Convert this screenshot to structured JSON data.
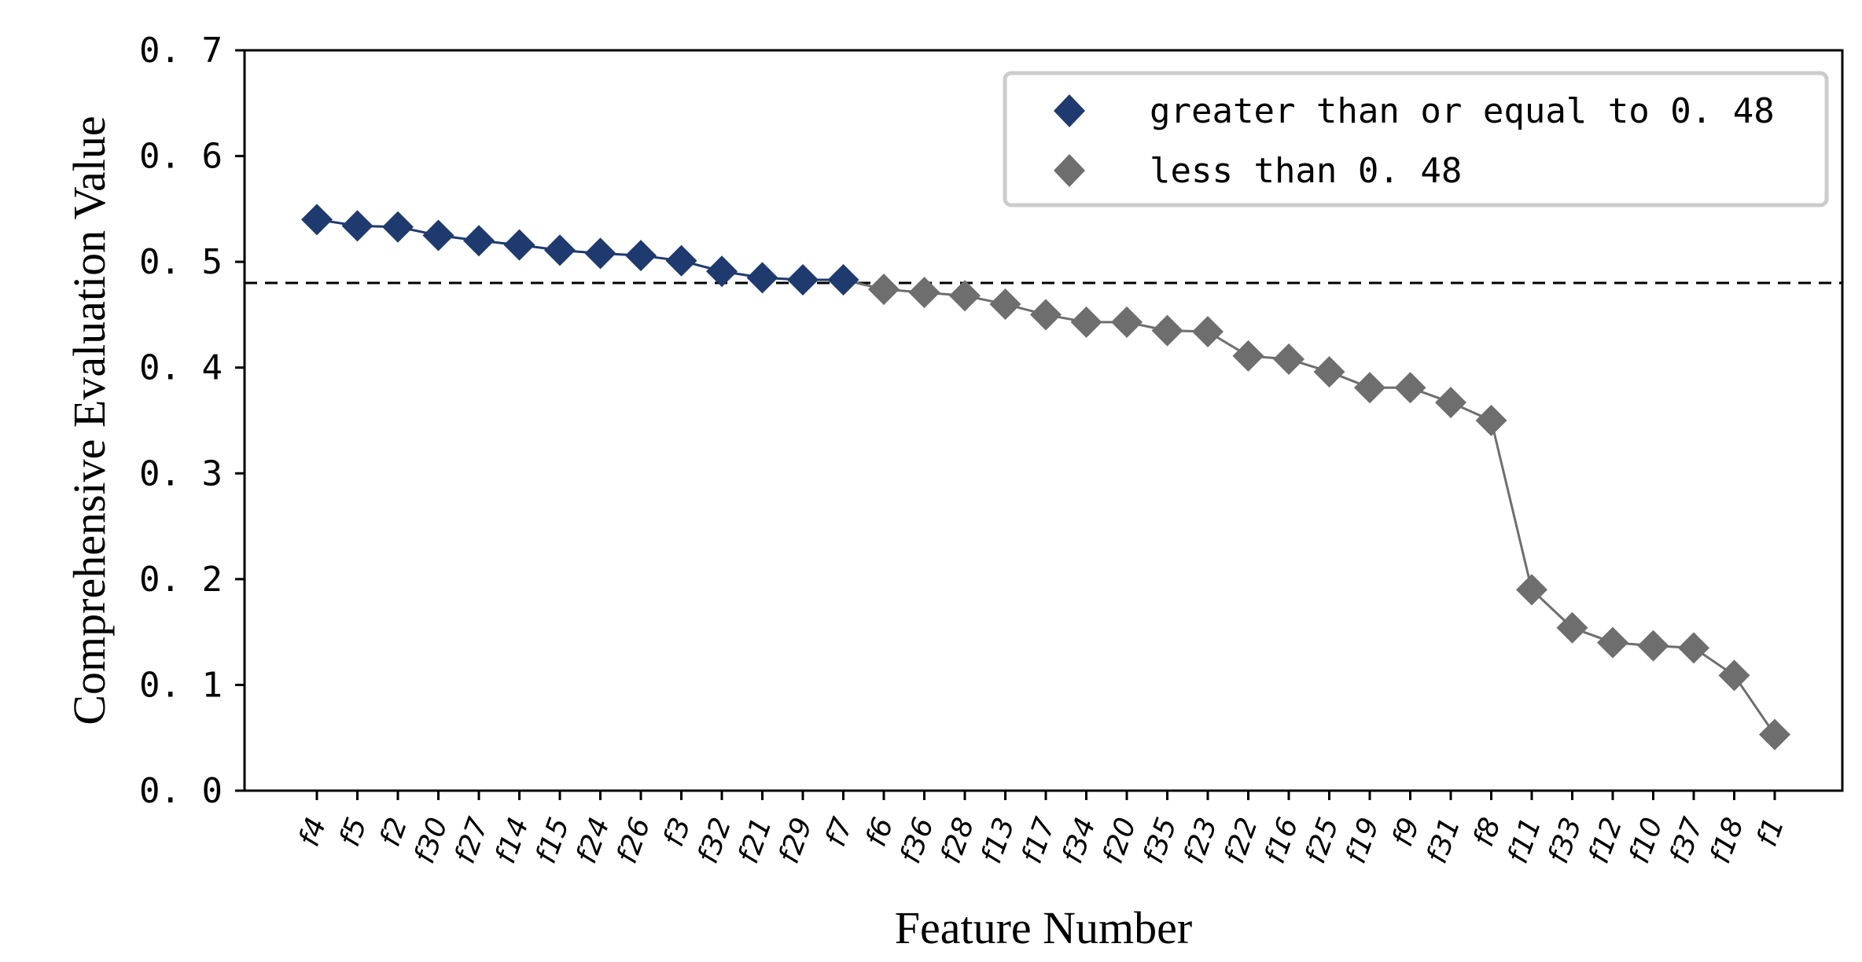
{
  "chart_data": {
    "type": "line",
    "xlabel": "Feature Number",
    "ylabel": "Comprehensive Evaluation Value",
    "ylim": [
      0,
      0.7
    ],
    "yticks": [
      "0. 0",
      "0. 1",
      "0. 2",
      "0. 3",
      "0. 4",
      "0. 5",
      "0. 6",
      "0. 7"
    ],
    "threshold": 0.48,
    "grid": false,
    "legend_position": "top-right",
    "categories": [
      "f4",
      "f5",
      "f2",
      "f30",
      "f27",
      "f14",
      "f15",
      "f24",
      "f26",
      "f3",
      "f32",
      "f21",
      "f29",
      "f7",
      "f6",
      "f36",
      "f28",
      "f13",
      "f17",
      "f34",
      "f20",
      "f35",
      "f23",
      "f22",
      "f16",
      "f25",
      "f19",
      "f9",
      "f31",
      "f8",
      "f11",
      "f33",
      "f12",
      "f10",
      "f37",
      "f18",
      "f1"
    ],
    "values": [
      0.54,
      0.534,
      0.533,
      0.525,
      0.52,
      0.516,
      0.511,
      0.508,
      0.506,
      0.501,
      0.491,
      0.485,
      0.483,
      0.483,
      0.474,
      0.471,
      0.468,
      0.46,
      0.45,
      0.443,
      0.443,
      0.435,
      0.434,
      0.411,
      0.408,
      0.396,
      0.381,
      0.381,
      0.367,
      0.35,
      0.19,
      0.154,
      0.14,
      0.137,
      0.135,
      0.109,
      0.053
    ],
    "series": [
      {
        "name": "greater than or equal to 0. 48",
        "color": "#1f3a6e",
        "range": [
          0,
          13
        ]
      },
      {
        "name": "less than 0. 48",
        "color": "#6e6e6e",
        "range": [
          14,
          36
        ]
      }
    ]
  }
}
